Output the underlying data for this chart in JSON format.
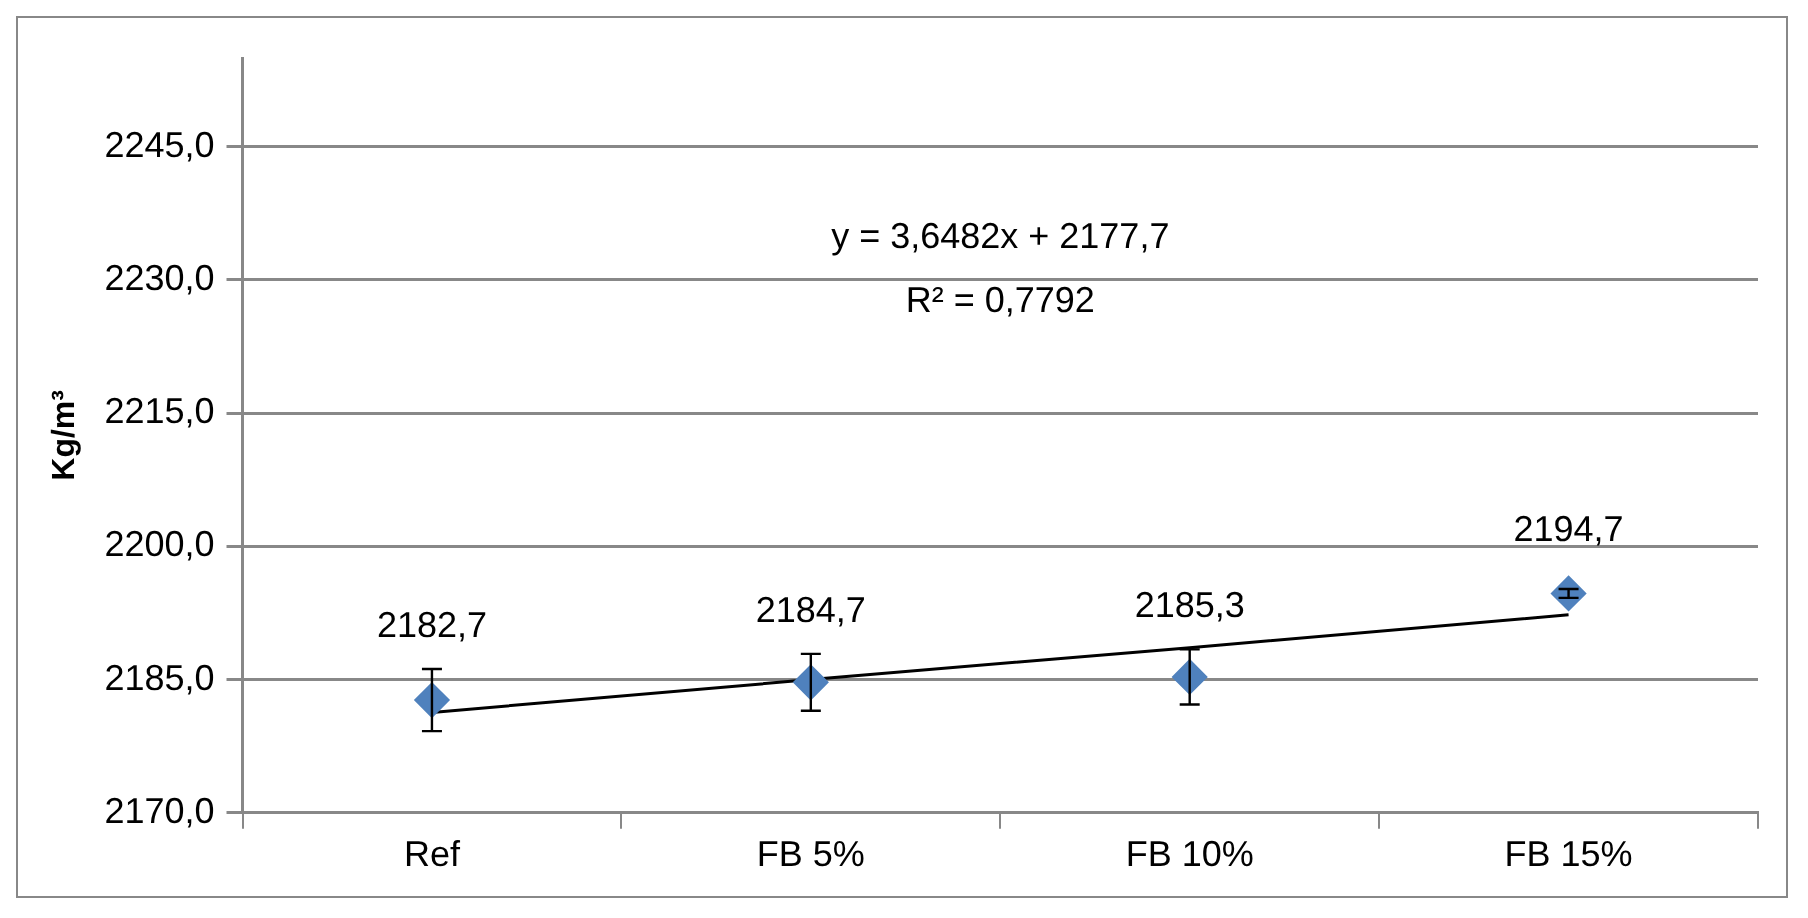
{
  "chart_data": {
    "type": "scatter",
    "ylabel": "Kg/m³",
    "categories": [
      "Ref",
      "FB 5%",
      "FB 10%",
      "FB 15%"
    ],
    "series": [
      {
        "color": "#4f81bd",
        "values": [
          2182.7,
          2184.7,
          2185.3,
          2194.7
        ],
        "errors": [
          3.5,
          3.2,
          3.1,
          0.5
        ],
        "value_labels": [
          "2182,7",
          "2184,7",
          "2185,3",
          "2194,7"
        ],
        "marker": "diamond"
      },
      {
        "type": "line",
        "color": "#000000",
        "values": [
          2181.3,
          2185.0,
          2188.6,
          2192.3
        ],
        "marker": "none",
        "line_style": "solid"
      }
    ],
    "ylim": [
      2170,
      2255
    ],
    "yticks": [
      {
        "value": 2170,
        "label": "2170,0"
      },
      {
        "value": 2185,
        "label": "2185,0"
      },
      {
        "value": 2200,
        "label": "2200,0"
      },
      {
        "value": 2215,
        "label": "2215,0"
      },
      {
        "value": 2230,
        "label": "2230,0"
      },
      {
        "value": 2245,
        "label": "2245,0"
      }
    ],
    "annotations": [
      "y = 3,6482x + 2177,7",
      "R² = 0,7792"
    ],
    "grid": "y",
    "legend": false
  }
}
